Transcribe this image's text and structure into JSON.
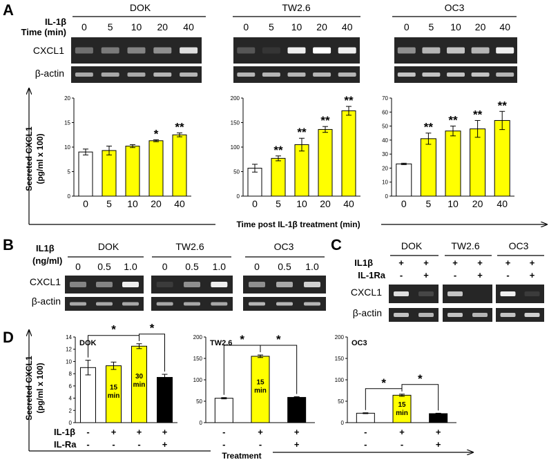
{
  "figure": {
    "panel_a": {
      "label": "A",
      "row_labels": [
        "IL-1β",
        "Time (min)",
        "CXCL1",
        "β-actin"
      ],
      "cell_lines": [
        {
          "name": "DOK",
          "lanes": [
            "0",
            "5",
            "10",
            "20",
            "40"
          ],
          "cxcl1": [
            0.45,
            0.5,
            0.55,
            0.6,
            0.9
          ],
          "actin": [
            0.7,
            0.7,
            0.7,
            0.75,
            0.75
          ]
        },
        {
          "name": "TW2.6",
          "lanes": [
            "0",
            "5",
            "10",
            "20",
            "40"
          ],
          "cxcl1": [
            0.3,
            0.05,
            0.95,
            1.0,
            0.95
          ],
          "actin": [
            0.75,
            0.75,
            0.75,
            0.75,
            0.75
          ]
        },
        {
          "name": "OC3",
          "lanes": [
            "0",
            "5",
            "10",
            "20",
            "40"
          ],
          "cxcl1": [
            0.6,
            0.75,
            0.8,
            0.75,
            0.95
          ],
          "actin": [
            0.8,
            0.8,
            0.8,
            0.8,
            0.75
          ]
        }
      ],
      "y_axis_label": "Secreted CXCL1",
      "y_axis_unit": "(pg/ml x 100)",
      "x_axis_label": "Time post IL-1β treatment (min)"
    },
    "panel_b": {
      "label": "B",
      "row_labels": [
        "IL1β",
        "(ng/ml)",
        "CXCL1",
        "β-actin"
      ],
      "cell_lines": [
        {
          "name": "DOK",
          "lanes": [
            "0",
            "0.5",
            "1.0"
          ],
          "cxcl1": [
            0.55,
            0.55,
            0.95
          ],
          "actin": [
            0.7,
            0.7,
            0.7
          ]
        },
        {
          "name": "TW2.6",
          "lanes": [
            "0",
            "0.5",
            "1.0"
          ],
          "cxcl1": [
            0.1,
            0.6,
            0.95
          ],
          "actin": [
            0.7,
            0.7,
            0.7
          ]
        },
        {
          "name": "OC3",
          "lanes": [
            "0",
            "0.5",
            "1.0"
          ],
          "cxcl1": [
            0.6,
            0.7,
            0.85
          ],
          "actin": [
            0.75,
            0.75,
            0.75
          ]
        }
      ]
    },
    "panel_c": {
      "label": "C",
      "row_labels": [
        "IL1β",
        "IL-1Ra",
        "CXCL1",
        "β-actin"
      ],
      "cell_lines": [
        {
          "name": "DOK",
          "il1b": [
            "+",
            "+"
          ],
          "il1ra": [
            "-",
            "+"
          ],
          "cxcl1": [
            0.9,
            0.2
          ],
          "actin": [
            0.8,
            0.75
          ]
        },
        {
          "name": "TW2.6",
          "il1b": [
            "+",
            "+"
          ],
          "il1ra": [
            "-",
            "+"
          ],
          "cxcl1": [
            0.8,
            0.0
          ],
          "actin": [
            0.8,
            0.75
          ]
        },
        {
          "name": "OC3",
          "il1b": [
            "+",
            "+"
          ],
          "il1ra": [
            "-",
            "+"
          ],
          "cxcl1": [
            0.95,
            0.1
          ],
          "actin": [
            0.8,
            0.85
          ]
        }
      ]
    },
    "panel_d": {
      "label": "D",
      "y_axis_label": "Secreted CXCL1",
      "y_axis_unit": "(pg/ml x 100)",
      "row_labels": [
        "IL-1β",
        "IL-Ra"
      ],
      "il1b": [
        "-",
        "+",
        "+",
        "+"
      ],
      "il_ra": [
        "-",
        "-",
        "-",
        "+"
      ],
      "x_axis_label": "Treatment"
    }
  },
  "chart_data": [
    {
      "type": "bar",
      "title": "",
      "categories": [
        "0",
        "5",
        "10",
        "20",
        "40"
      ],
      "values": [
        9.0,
        9.3,
        10.2,
        11.3,
        12.5
      ],
      "errors": [
        0.6,
        0.9,
        0.3,
        0.2,
        0.4
      ],
      "fills": [
        "#ffffff",
        "#ffff00",
        "#ffff00",
        "#ffff00",
        "#ffff00"
      ],
      "stars": [
        "",
        "",
        "",
        "*",
        "**"
      ],
      "ylim": [
        0,
        20
      ],
      "yticks": [
        0,
        5,
        10,
        15,
        20
      ],
      "ylabel": "Secreted CXCL1 (pg/ml x 100)",
      "xlabel": "Time post IL-1β treatment (min)"
    },
    {
      "type": "bar",
      "title": "",
      "categories": [
        "0",
        "5",
        "10",
        "20",
        "40"
      ],
      "values": [
        57,
        77,
        105,
        136,
        174
      ],
      "errors": [
        8,
        5,
        13,
        6,
        9
      ],
      "fills": [
        "#ffffff",
        "#ffff00",
        "#ffff00",
        "#ffff00",
        "#ffff00"
      ],
      "stars": [
        "",
        "**",
        "**",
        "**",
        "**"
      ],
      "ylim": [
        0,
        200
      ],
      "yticks": [
        0,
        50,
        100,
        150,
        200
      ],
      "ylabel": "Secreted CXCL1 (pg/ml x 100)",
      "xlabel": "Time post IL-1β treatment (min)"
    },
    {
      "type": "bar",
      "title": "",
      "categories": [
        "0",
        "5",
        "10",
        "20",
        "40"
      ],
      "values": [
        23,
        41,
        46.5,
        48,
        54
      ],
      "errors": [
        0.5,
        4,
        3.5,
        6,
        6.5
      ],
      "fills": [
        "#ffffff",
        "#ffff00",
        "#ffff00",
        "#ffff00",
        "#ffff00"
      ],
      "stars": [
        "",
        "**",
        "**",
        "**",
        "**"
      ],
      "ylim": [
        0,
        70
      ],
      "yticks": [
        0,
        10,
        20,
        30,
        40,
        50,
        60,
        70
      ],
      "ylabel": "Secreted CXCL1 (pg/ml x 100)",
      "xlabel": "Time post IL-1β treatment (min)"
    },
    {
      "type": "bar",
      "title": "DOK",
      "categories": [
        "1",
        "2",
        "3",
        "4"
      ],
      "values": [
        9.0,
        9.3,
        12.5,
        7.4
      ],
      "errors": [
        1.2,
        0.6,
        0.4,
        0.5
      ],
      "fills": [
        "#ffffff",
        "#ffff00",
        "#ffff00",
        "#000000"
      ],
      "inbar": [
        [],
        [
          "15",
          "min"
        ],
        [
          "30",
          "min"
        ],
        []
      ],
      "brackets": [
        [
          0,
          2
        ],
        [
          2,
          3
        ]
      ],
      "ylim": [
        0,
        14
      ],
      "yticks": [
        0,
        2,
        4,
        6,
        8,
        10,
        12,
        14
      ],
      "ylabel": "Secreted CXCL1 (pg/ml x 100)",
      "xlabel": "Treatment"
    },
    {
      "type": "bar",
      "title": "TW2.6",
      "categories": [
        "1",
        "2",
        "3"
      ],
      "values": [
        57,
        155,
        59
      ],
      "errors": [
        1.5,
        3,
        1.5
      ],
      "fills": [
        "#ffffff",
        "#ffff00",
        "#000000"
      ],
      "inbar": [
        [],
        [
          "15",
          "min"
        ],
        []
      ],
      "brackets": [
        [
          0,
          1
        ],
        [
          1,
          2
        ]
      ],
      "ylim": [
        0,
        200
      ],
      "yticks": [
        0,
        50,
        100,
        150,
        200
      ],
      "ylabel": "Secreted CXCL1 (pg/ml x 100)",
      "xlabel": "Treatment"
    },
    {
      "type": "bar",
      "title": "OC3",
      "categories": [
        "1",
        "2",
        "3"
      ],
      "values": [
        22,
        64,
        21
      ],
      "errors": [
        1,
        2.5,
        1
      ],
      "fills": [
        "#ffffff",
        "#ffff00",
        "#000000"
      ],
      "inbar": [
        [],
        [
          "15",
          "min"
        ],
        []
      ],
      "brackets": [
        [
          0,
          1
        ],
        [
          1,
          2
        ]
      ],
      "ylim": [
        0,
        200
      ],
      "yticks": [
        0,
        50,
        100,
        150,
        200
      ],
      "ylabel": "Secreted CXCL1 (pg/ml x 100)",
      "xlabel": "Treatment"
    }
  ]
}
